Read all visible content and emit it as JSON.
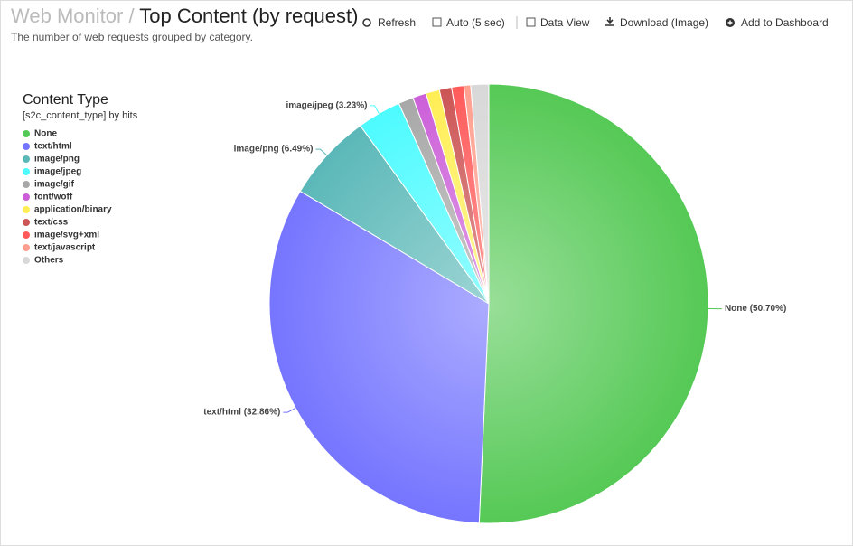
{
  "header": {
    "breadcrumb": "Web Monitor",
    "separator": "/",
    "title": "Top Content (by request)",
    "subtitle": "The number of web requests grouped by category."
  },
  "toolbar": {
    "refresh": "Refresh",
    "auto": "Auto (5 sec)",
    "data_view": "Data View",
    "download": "Download (Image)",
    "add": "Add to Dashboard"
  },
  "chart_data": {
    "type": "pie",
    "legend_title": "Content Type",
    "legend_subtitle": "[s2c_content_type] by hits",
    "legend": "top-left",
    "categories": [
      "None",
      "text/html",
      "image/png",
      "image/jpeg",
      "image/gif",
      "font/woff",
      "application/binary",
      "text/css",
      "image/svg+xml",
      "text/javascript",
      "Others"
    ],
    "values": [
      50.7,
      32.86,
      6.49,
      3.23,
      1.1,
      1.0,
      1.0,
      0.9,
      0.9,
      0.5,
      1.32
    ],
    "value_labels": [
      "None (50.70%)",
      "text/html (32.86%)",
      "image/png (6.49%)",
      "image/jpeg (3.23%)",
      null,
      null,
      null,
      null,
      null,
      null,
      null
    ],
    "colors": [
      "#55c955",
      "#7575ff",
      "#5bb8b8",
      "#4dfbff",
      "#a8a8a8",
      "#cc5fd9",
      "#ffee55",
      "#cc5555",
      "#ff5a5a",
      "#ff9f8f",
      "#d8d8d8"
    ]
  }
}
